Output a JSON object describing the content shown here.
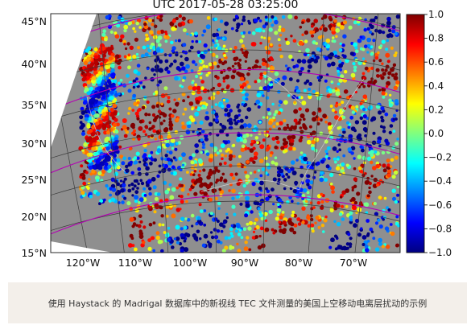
{
  "figure": {
    "title": "UTC 2017-05-28 03:25:00"
  },
  "map": {
    "latitude_labels": [
      "45°N",
      "40°N",
      "35°N",
      "30°N",
      "25°N",
      "20°N",
      "15°N"
    ],
    "longitude_labels": [
      "120°W",
      "110°W",
      "100°W",
      "90°W",
      "80°W",
      "70°W"
    ],
    "colormap": "jet",
    "background_color": "#8f8f8f",
    "colorbar_min": -1.0,
    "colorbar_max": 1.0
  },
  "colorbar": {
    "ticks": [
      "1.0",
      "0.8",
      "0.6",
      "0.4",
      "0.2",
      "0.0",
      "−0.2",
      "−0.4",
      "−0.6",
      "−0.8",
      "−1.0"
    ]
  },
  "caption": {
    "text": "使用 Haystack 的 Madrigal 数据库中的新视线 TEC 文件测量的美国上空移动电离层扰动的示例"
  }
}
